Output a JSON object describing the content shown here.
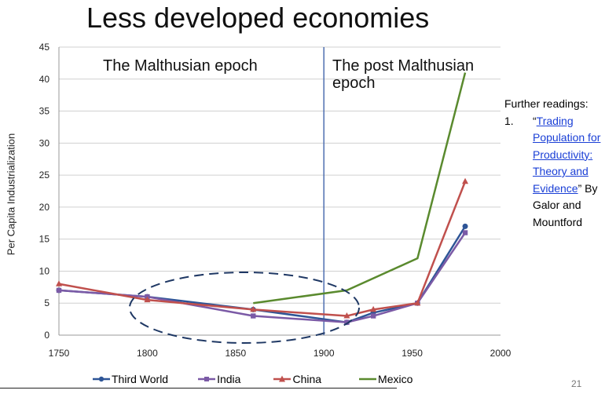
{
  "slide": {
    "title": "Less developed economies",
    "page_number": "21"
  },
  "readings": {
    "heading": "Further readings:",
    "number": "1.",
    "quote_open": "“",
    "link_text": "Trading Population for Productivity: Theory and Evidence",
    "rest": "” By Galor and Mountford"
  },
  "colors": {
    "grid": "#d0d0d0",
    "axis": "#999999",
    "divider": "#4f6fb0",
    "ellipse": "#1f3864"
  },
  "chart_data": {
    "type": "line",
    "title": "",
    "xlabel": "",
    "ylabel": "Per Capita Industrialization",
    "xlim": [
      1750,
      2000
    ],
    "ylim": [
      0,
      45
    ],
    "xticks": [
      1750,
      1800,
      1850,
      1900,
      1950,
      2000
    ],
    "yticks": [
      0,
      5,
      10,
      15,
      20,
      25,
      30,
      35,
      40,
      45
    ],
    "grid": "horizontal",
    "legend_position": "bottom",
    "annotations": [
      {
        "text": "The Malthusian epoch"
      },
      {
        "text": "The post Malthusian epoch"
      }
    ],
    "vertical_line_x": 1900,
    "series": [
      {
        "name": "Third World",
        "color": "#2e5597",
        "marker": "circle",
        "x": [
          1750,
          1800,
          1860,
          1913,
          1928,
          1953,
          1980
        ],
        "y": [
          7,
          6,
          4,
          2,
          3.5,
          5,
          17
        ]
      },
      {
        "name": "India",
        "color": "#7b5aa6",
        "marker": "square",
        "x": [
          1750,
          1800,
          1860,
          1913,
          1928,
          1953,
          1980
        ],
        "y": [
          7,
          6,
          3,
          2,
          3,
          5,
          16
        ]
      },
      {
        "name": "China",
        "color": "#c0504d",
        "marker": "triangle",
        "x": [
          1750,
          1800,
          1860,
          1913,
          1928,
          1953,
          1980
        ],
        "y": [
          8,
          5.5,
          4,
          3,
          4,
          5,
          24
        ]
      },
      {
        "name": "Mexico",
        "color": "#5a8a2e",
        "marker": "none",
        "x": [
          1860,
          1913,
          1953,
          1980
        ],
        "y": [
          5,
          7,
          12,
          41
        ]
      }
    ]
  }
}
